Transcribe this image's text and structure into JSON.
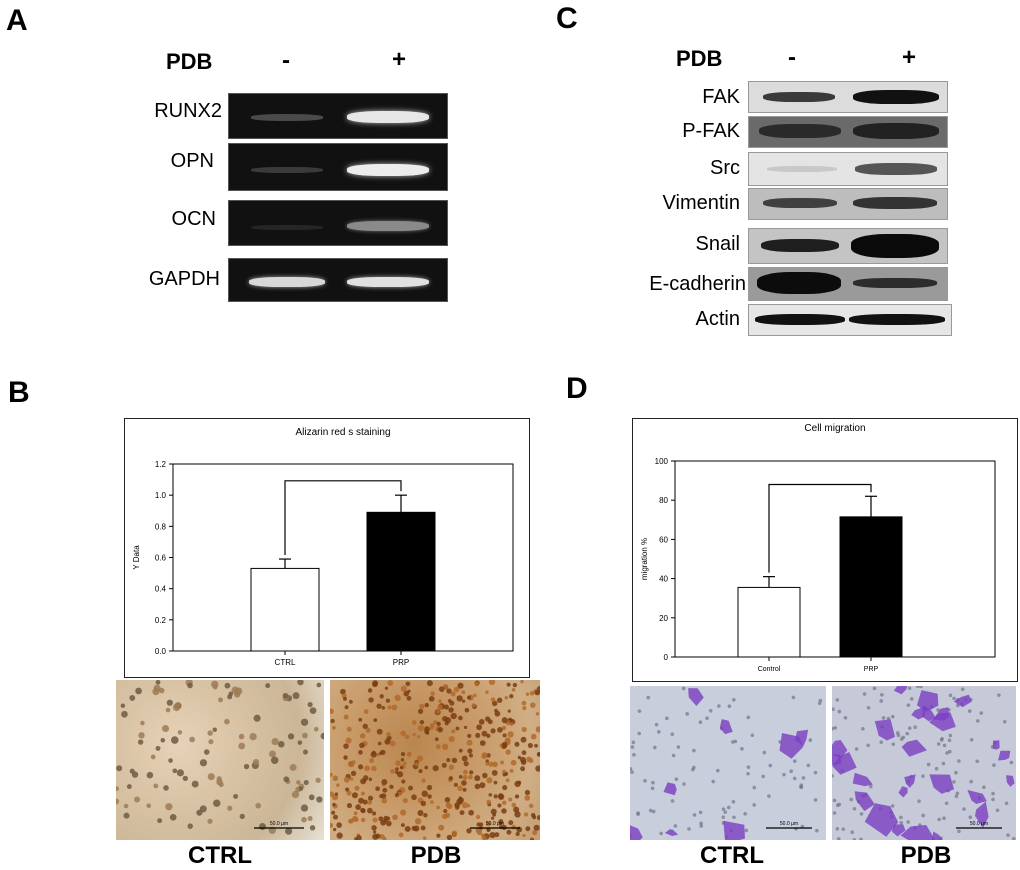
{
  "panel_a": {
    "letter": "A",
    "treatment_label": "PDB",
    "minus": "-",
    "plus": "+",
    "genes": [
      "RUNX2",
      "OPN",
      "OCN",
      "GAPDH"
    ]
  },
  "panel_c": {
    "letter": "C",
    "treatment_label": "PDB",
    "minus": "-",
    "plus": "+",
    "proteins": [
      "FAK",
      "P-FAK",
      "Src",
      "Vimentin",
      "Snail",
      "E-cadherin",
      "Actin"
    ]
  },
  "panel_b": {
    "letter": "B",
    "captions": [
      "CTRL",
      "PDB"
    ],
    "scale_bar": "50.0 µm"
  },
  "panel_d": {
    "letter": "D",
    "captions": [
      "CTRL",
      "PDB"
    ],
    "scale_bar": "50.0 µm"
  },
  "chart_data": [
    {
      "type": "bar",
      "title": "Alizarin red s staining",
      "ylabel": "Y Data",
      "xlabel": "",
      "categories": [
        "CTRL",
        "PRP"
      ],
      "values": [
        0.53,
        0.89
      ],
      "errors": [
        0.06,
        0.11
      ],
      "ylim": [
        0,
        1.2
      ],
      "yticks": [
        "0.0",
        "0.2",
        "0.4",
        "0.6",
        "0.8",
        "1.0",
        "1.2"
      ],
      "bar_colors": [
        "#ffffff",
        "#000000"
      ],
      "significance_bracket": true
    },
    {
      "type": "bar",
      "title": "Cell migration",
      "ylabel": "migration %",
      "xlabel": "",
      "categories": [
        "Control",
        "PRP"
      ],
      "values": [
        35.5,
        71.5
      ],
      "errors": [
        5.5,
        10.5
      ],
      "ylim": [
        0,
        100
      ],
      "yticks": [
        "0",
        "20",
        "40",
        "60",
        "80",
        "100"
      ],
      "bar_colors": [
        "#ffffff",
        "#000000"
      ],
      "significance_bracket": true
    }
  ]
}
